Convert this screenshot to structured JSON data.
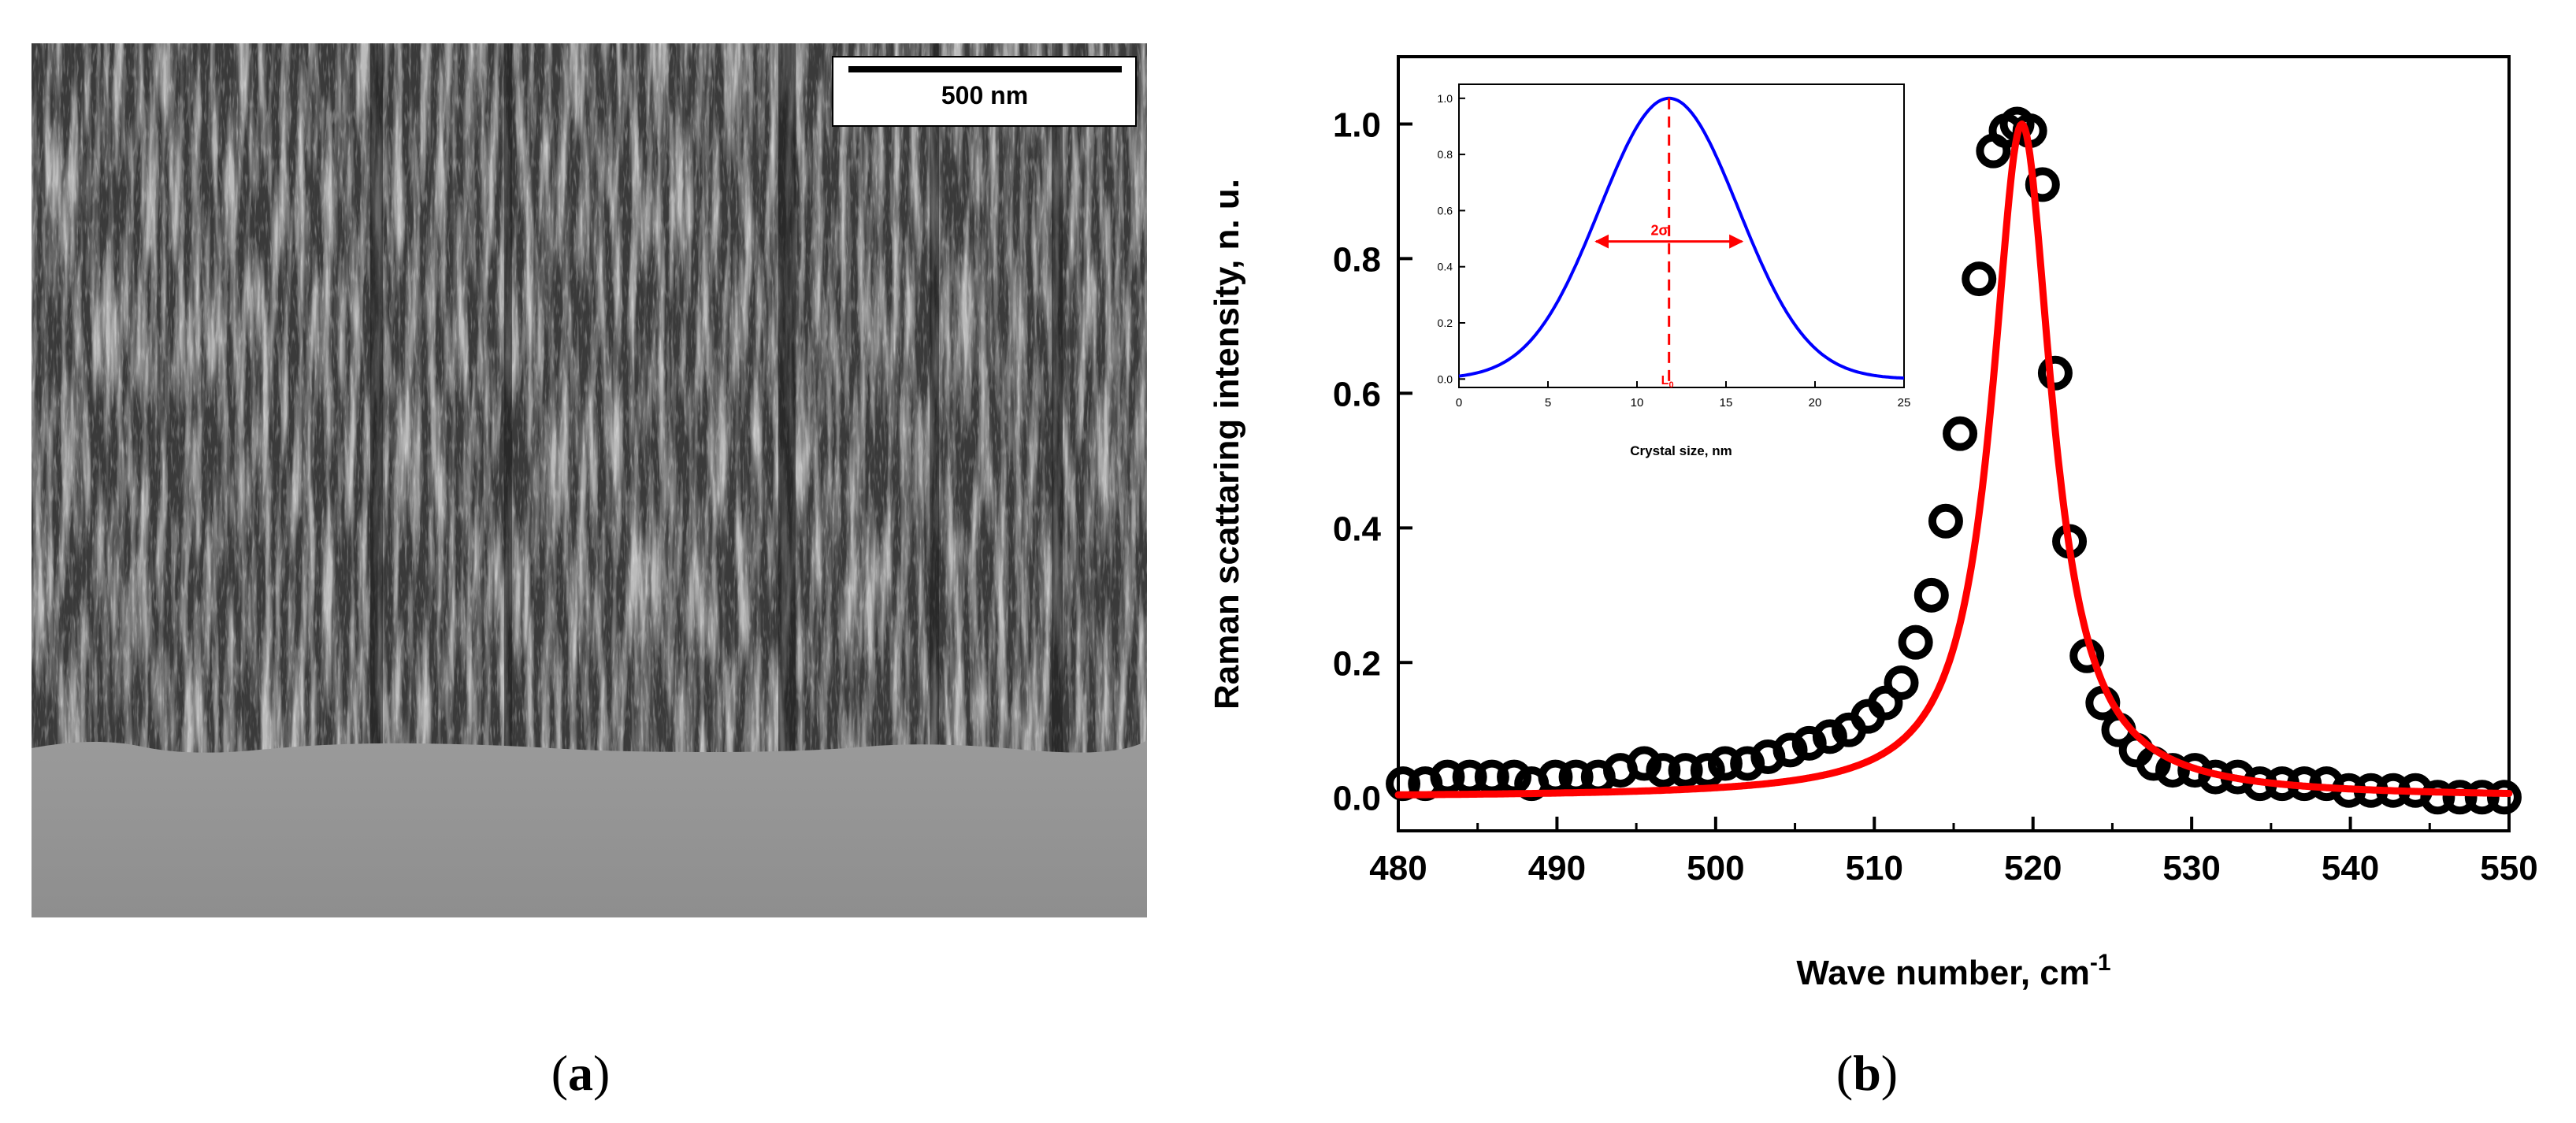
{
  "panel_a": {
    "caption_open": "(",
    "caption_letter": "a",
    "caption_close": ")",
    "scale_bar_label": "500 nm",
    "image_description": "SEM cross-section of porous silicon columnar layer on substrate"
  },
  "panel_b": {
    "caption_open": "(",
    "caption_letter": "b",
    "caption_close": ")"
  },
  "chart_data": [
    {
      "id": "main",
      "type": "scatter",
      "title": "",
      "xlabel": "Wave number, cm",
      "xlabel_superscript": "-1",
      "ylabel": "Raman scattaring intensity, n. u.",
      "xlim": [
        480,
        550
      ],
      "ylim": [
        -0.05,
        1.1
      ],
      "xticks": [
        480,
        490,
        500,
        510,
        520,
        530,
        540,
        550
      ],
      "yticks": [
        0.0,
        0.2,
        0.4,
        0.6,
        0.8,
        1.0
      ],
      "xtick_labels": [
        "480",
        "490",
        "500",
        "510",
        "520",
        "530",
        "540",
        "550"
      ],
      "ytick_labels": [
        "0.0",
        "0.2",
        "0.4",
        "0.6",
        "0.8",
        "1.0"
      ],
      "colors": {
        "points": "#000000",
        "fit": "#ff0000"
      },
      "series": [
        {
          "name": "measured",
          "kind": "points",
          "x": [
            480.3,
            481.7,
            483.1,
            484.5,
            485.9,
            487.3,
            488.4,
            489.9,
            491.2,
            492.6,
            494.0,
            495.5,
            496.7,
            498.1,
            499.5,
            500.6,
            502.0,
            503.3,
            504.7,
            505.9,
            507.2,
            508.4,
            509.6,
            510.7,
            511.7,
            512.6,
            513.6,
            514.5,
            515.4,
            516.6,
            517.5,
            518.3,
            519.0,
            519.8,
            520.6,
            521.4,
            522.3,
            523.4,
            524.4,
            525.4,
            526.5,
            527.6,
            528.8,
            530.2,
            531.5,
            532.9,
            534.3,
            535.7,
            537.1,
            538.5,
            539.9,
            541.3,
            542.7,
            544.1,
            545.5,
            546.9,
            548.3,
            549.7
          ],
          "y": [
            0.02,
            0.02,
            0.03,
            0.03,
            0.03,
            0.03,
            0.02,
            0.03,
            0.03,
            0.03,
            0.04,
            0.05,
            0.04,
            0.04,
            0.04,
            0.05,
            0.05,
            0.06,
            0.07,
            0.08,
            0.09,
            0.1,
            0.12,
            0.14,
            0.17,
            0.23,
            0.3,
            0.41,
            0.54,
            0.77,
            0.96,
            0.99,
            1.0,
            0.99,
            0.91,
            0.63,
            0.38,
            0.21,
            0.14,
            0.1,
            0.07,
            0.05,
            0.04,
            0.04,
            0.03,
            0.03,
            0.02,
            0.02,
            0.02,
            0.02,
            0.01,
            0.01,
            0.01,
            0.01,
            0.0,
            0.0,
            0.0,
            0.0
          ]
        },
        {
          "name": "fit",
          "kind": "line",
          "model": "lorentzian",
          "center": 519.3,
          "hwhm": 2.3,
          "baseline": 0.0
        }
      ]
    },
    {
      "id": "inset",
      "type": "line",
      "xlabel": "Crystal size, nm",
      "ylabel": "",
      "xlim": [
        0,
        25
      ],
      "ylim": [
        -0.03,
        1.05
      ],
      "xticks": [
        0,
        5,
        10,
        15,
        20,
        25
      ],
      "yticks": [
        0.0,
        0.2,
        0.4,
        0.6,
        0.8,
        1.0
      ],
      "xtick_labels": [
        "0",
        "5",
        "10",
        "15",
        "20",
        "25"
      ],
      "ytick_labels": [
        "0.0",
        "0.2",
        "0.4",
        "0.6",
        "0.8",
        "1.0"
      ],
      "colors": {
        "curve": "#0000ff",
        "annotation": "#ff0000"
      },
      "series": [
        {
          "name": "size distribution",
          "model": "gaussian",
          "mean": 11.8,
          "sigma": 3.9
        }
      ],
      "annotations": {
        "mean_line_x": 11.8,
        "arrow_y": 0.49,
        "arrow_x_from": 7.7,
        "arrow_x_to": 15.9,
        "width_label": "2σ",
        "mean_label_base": "L",
        "mean_label_sub": "0"
      }
    }
  ]
}
